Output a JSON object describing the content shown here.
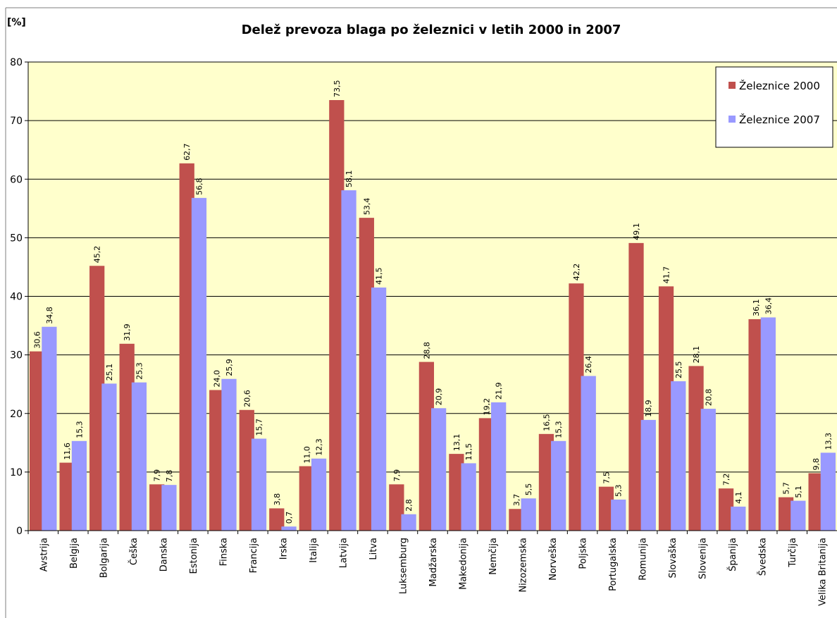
{
  "chart_data": {
    "type": "bar",
    "title": "Delež prevoza blaga po železnici v letih 2000 in 2007",
    "ylabel": "[%]",
    "xlabel": "",
    "ylim": [
      0,
      80
    ],
    "yticks": [
      0,
      10,
      20,
      30,
      40,
      50,
      60,
      70,
      80
    ],
    "grid": true,
    "legend_position": "top-right",
    "plot_background": "#ffffcc",
    "categories": [
      "Avstrija",
      "Belgija",
      "Bolgarija",
      "Češka",
      "Danska",
      "Estonija",
      "Finska",
      "Francija",
      "Irska",
      "Italija",
      "Latvija",
      "Litva",
      "Luksemburg",
      "Madžarska",
      "Makedonija",
      "Nemčija",
      "Nizozemska",
      "Norveška",
      "Poljska",
      "Portugalska",
      "Romunija",
      "Slovaška",
      "Slovenija",
      "Španija",
      "Švedska",
      "Turčija",
      "Velika Britanija"
    ],
    "series": [
      {
        "name": "Železnice 2000",
        "color": "#c0504d",
        "values": [
          30.6,
          11.6,
          45.2,
          31.9,
          7.9,
          62.7,
          24.0,
          20.6,
          3.8,
          11.0,
          73.5,
          53.4,
          7.9,
          28.8,
          13.1,
          19.2,
          3.7,
          16.5,
          42.2,
          7.5,
          49.1,
          41.7,
          28.1,
          7.2,
          36.1,
          5.7,
          9.8
        ],
        "labels": [
          "30,6",
          "11,6",
          "45,2",
          "31,9",
          "7,9",
          "62,7",
          "24,0",
          "20,6",
          "3,8",
          "11,0",
          "73,5",
          "53,4",
          "7,9",
          "28,8",
          "13,1",
          "19,2",
          "3,7",
          "16,5",
          "42,2",
          "7,5",
          "49,1",
          "41,7",
          "28,1",
          "7,2",
          "36,1",
          "5,7",
          "9,8"
        ]
      },
      {
        "name": "Železnice 2007",
        "color": "#9999ff",
        "values": [
          34.8,
          15.3,
          25.1,
          25.3,
          7.8,
          56.8,
          25.9,
          15.7,
          0.7,
          12.3,
          58.1,
          41.5,
          2.8,
          20.9,
          11.5,
          21.9,
          5.5,
          15.3,
          26.4,
          5.3,
          18.9,
          25.5,
          20.8,
          4.1,
          36.4,
          5.1,
          13.3
        ],
        "labels": [
          "34,8",
          "15,3",
          "25,1",
          "25,3",
          "7,8",
          "56,8",
          "25,9",
          "15,7",
          "0,7",
          "12,3",
          "58,1",
          "41,5",
          "2,8",
          "20,9",
          "11,5",
          "21,9",
          "5,5",
          "15,3",
          "26,4",
          "5,3",
          "18,9",
          "25,5",
          "20,8",
          "4,1",
          "36,4",
          "5,1",
          "13,3"
        ]
      }
    ]
  }
}
